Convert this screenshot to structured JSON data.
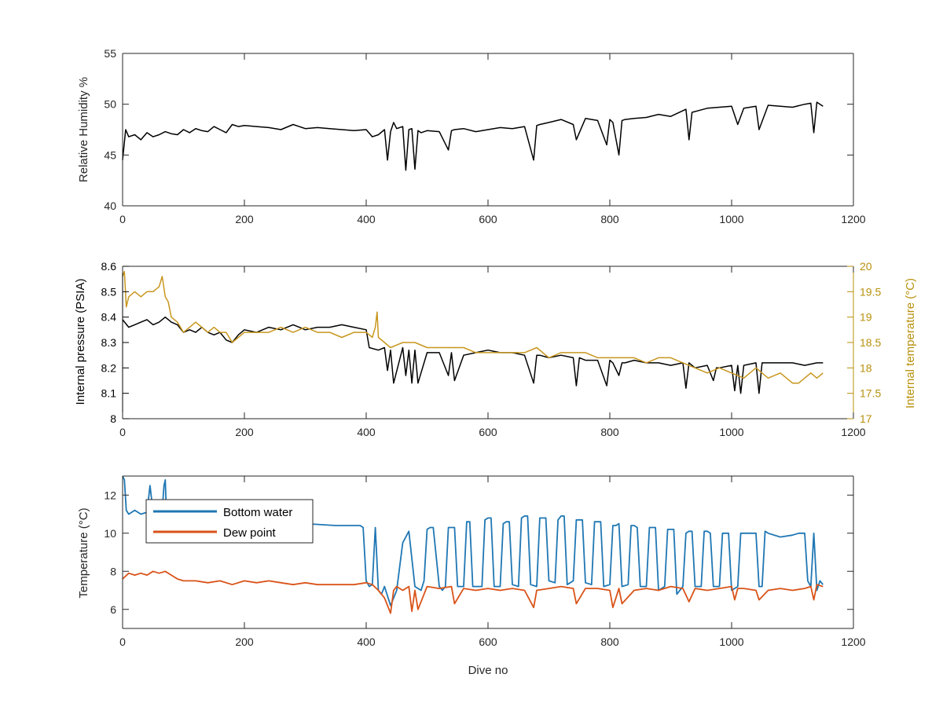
{
  "chart_data": [
    {
      "type": "line",
      "xlabel": "",
      "ylabel": "Relative Humidity %",
      "xlim": [
        0,
        1200
      ],
      "ylim": [
        40,
        55
      ],
      "xticks": [
        0,
        200,
        400,
        600,
        800,
        1000,
        1200
      ],
      "yticks": [
        40,
        45,
        50,
        55
      ],
      "series": [
        {
          "color": "#000000",
          "x": [
            0,
            5,
            10,
            20,
            30,
            40,
            50,
            60,
            70,
            80,
            90,
            100,
            110,
            120,
            130,
            140,
            150,
            160,
            170,
            180,
            190,
            200,
            220,
            240,
            260,
            280,
            300,
            320,
            340,
            360,
            380,
            400,
            410,
            420,
            430,
            435,
            440,
            445,
            450,
            460,
            465,
            470,
            475,
            480,
            485,
            490,
            500,
            520,
            535,
            540,
            545,
            560,
            580,
            600,
            620,
            640,
            660,
            675,
            680,
            685,
            700,
            720,
            740,
            745,
            760,
            780,
            795,
            800,
            805,
            815,
            820,
            825,
            840,
            860,
            880,
            900,
            925,
            930,
            935,
            960,
            980,
            1000,
            1010,
            1020,
            1040,
            1045,
            1060,
            1080,
            1100,
            1120,
            1130,
            1135,
            1140,
            1150
          ],
          "values": [
            44.5,
            47.5,
            46.8,
            47.0,
            46.5,
            47.2,
            46.8,
            47.0,
            47.3,
            47.1,
            47.0,
            47.5,
            47.2,
            47.6,
            47.4,
            47.3,
            47.8,
            47.5,
            47.2,
            48.0,
            47.8,
            47.9,
            47.8,
            47.7,
            47.5,
            48.0,
            47.6,
            47.7,
            47.6,
            47.5,
            47.4,
            47.5,
            46.8,
            47.0,
            47.5,
            44.5,
            47.3,
            48.2,
            47.6,
            47.8,
            43.5,
            47.5,
            47.6,
            43.6,
            47.4,
            47.2,
            47.4,
            47.3,
            45.5,
            47.4,
            47.5,
            47.6,
            47.3,
            47.5,
            47.7,
            47.6,
            47.8,
            44.5,
            47.9,
            48.0,
            48.2,
            48.5,
            48.0,
            46.5,
            48.6,
            48.4,
            46.0,
            48.5,
            48.2,
            45.0,
            48.4,
            48.5,
            48.6,
            48.7,
            49.0,
            48.8,
            49.5,
            46.5,
            49.2,
            49.6,
            49.7,
            49.8,
            48.0,
            49.6,
            49.8,
            47.5,
            49.9,
            49.8,
            49.7,
            50.0,
            50.1,
            47.2,
            50.2,
            49.8
          ]
        }
      ]
    },
    {
      "type": "line",
      "xlabel": "",
      "ylabel": "Internal pressure (PSIA)",
      "y2label": "Internal temperature (°C)",
      "xlim": [
        0,
        1200
      ],
      "ylim": [
        8,
        8.6
      ],
      "y2lim": [
        17,
        20
      ],
      "xticks": [
        0,
        200,
        400,
        600,
        800,
        1000,
        1200
      ],
      "yticks": [
        8,
        8.1,
        8.2,
        8.3,
        8.4,
        8.5,
        8.6
      ],
      "y2ticks": [
        17,
        17.5,
        18,
        18.5,
        19,
        19.5,
        20
      ],
      "series": [
        {
          "color": "#000000",
          "axis": "left",
          "x": [
            0,
            10,
            20,
            30,
            40,
            50,
            60,
            70,
            80,
            90,
            100,
            110,
            120,
            130,
            140,
            150,
            160,
            170,
            180,
            190,
            200,
            220,
            240,
            260,
            280,
            300,
            320,
            340,
            360,
            380,
            400,
            405,
            420,
            430,
            435,
            440,
            445,
            460,
            465,
            470,
            475,
            480,
            485,
            500,
            520,
            535,
            540,
            545,
            560,
            580,
            600,
            620,
            640,
            660,
            675,
            680,
            685,
            700,
            720,
            740,
            745,
            750,
            760,
            780,
            795,
            800,
            805,
            815,
            820,
            825,
            840,
            860,
            880,
            900,
            920,
            925,
            930,
            940,
            960,
            970,
            975,
            980,
            1000,
            1005,
            1010,
            1015,
            1020,
            1040,
            1045,
            1050,
            1080,
            1100,
            1120,
            1140,
            1150
          ],
          "values": [
            8.39,
            8.36,
            8.37,
            8.38,
            8.39,
            8.37,
            8.38,
            8.4,
            8.38,
            8.37,
            8.34,
            8.35,
            8.34,
            8.36,
            8.34,
            8.33,
            8.34,
            8.31,
            8.3,
            8.33,
            8.35,
            8.34,
            8.36,
            8.35,
            8.37,
            8.35,
            8.36,
            8.36,
            8.37,
            8.36,
            8.35,
            8.28,
            8.27,
            8.28,
            8.19,
            8.27,
            8.14,
            8.28,
            8.17,
            8.27,
            8.14,
            8.27,
            8.14,
            8.26,
            8.26,
            8.17,
            8.26,
            8.15,
            8.25,
            8.26,
            8.27,
            8.26,
            8.26,
            8.25,
            8.14,
            8.25,
            8.25,
            8.24,
            8.25,
            8.24,
            8.13,
            8.24,
            8.23,
            8.23,
            8.13,
            8.23,
            8.22,
            8.17,
            8.22,
            8.22,
            8.23,
            8.22,
            8.22,
            8.21,
            8.22,
            8.12,
            8.22,
            8.2,
            8.21,
            8.15,
            8.2,
            8.2,
            8.21,
            8.11,
            8.21,
            8.1,
            8.21,
            8.22,
            8.1,
            8.22,
            8.22,
            8.22,
            8.21,
            8.22,
            8.22
          ]
        },
        {
          "color": "#c8961e",
          "axis": "right",
          "x": [
            0,
            3,
            6,
            10,
            20,
            30,
            40,
            50,
            60,
            65,
            70,
            75,
            80,
            90,
            100,
            110,
            120,
            130,
            140,
            150,
            160,
            170,
            180,
            190,
            200,
            220,
            240,
            260,
            280,
            300,
            320,
            340,
            360,
            380,
            400,
            410,
            415,
            418,
            420,
            430,
            440,
            460,
            480,
            500,
            520,
            540,
            560,
            580,
            600,
            620,
            640,
            660,
            680,
            700,
            720,
            740,
            760,
            780,
            800,
            820,
            840,
            860,
            880,
            900,
            920,
            940,
            960,
            980,
            1000,
            1020,
            1040,
            1060,
            1080,
            1090,
            1100,
            1110,
            1120,
            1130,
            1140,
            1150
          ],
          "values": [
            19.8,
            19.9,
            19.2,
            19.4,
            19.5,
            19.4,
            19.5,
            19.5,
            19.6,
            19.8,
            19.4,
            19.3,
            19.0,
            18.9,
            18.7,
            18.8,
            18.9,
            18.8,
            18.7,
            18.8,
            18.7,
            18.7,
            18.5,
            18.6,
            18.7,
            18.7,
            18.7,
            18.8,
            18.7,
            18.8,
            18.7,
            18.7,
            18.6,
            18.7,
            18.7,
            18.6,
            18.8,
            19.1,
            18.6,
            18.5,
            18.4,
            18.5,
            18.5,
            18.4,
            18.4,
            18.4,
            18.4,
            18.3,
            18.3,
            18.3,
            18.3,
            18.3,
            18.4,
            18.2,
            18.3,
            18.3,
            18.3,
            18.2,
            18.2,
            18.2,
            18.2,
            18.1,
            18.2,
            18.2,
            18.1,
            18.0,
            17.9,
            18.0,
            17.9,
            17.8,
            18.0,
            17.8,
            17.9,
            17.8,
            17.7,
            17.7,
            17.8,
            17.9,
            17.8,
            17.9
          ]
        }
      ]
    },
    {
      "type": "line",
      "xlabel": "Dive no",
      "ylabel": "Temperature (°C)",
      "xlim": [
        0,
        1200
      ],
      "ylim": [
        5,
        13
      ],
      "xticks": [
        0,
        200,
        400,
        600,
        800,
        1000,
        1200
      ],
      "yticks": [
        6,
        8,
        10,
        12
      ],
      "legend": "top-left",
      "series": [
        {
          "name": "Bottom water",
          "color": "#1f77b4",
          "x": [
            0,
            3,
            6,
            10,
            20,
            30,
            40,
            45,
            50,
            55,
            60,
            65,
            68,
            70,
            72,
            80,
            100,
            120,
            150,
            200,
            250,
            300,
            350,
            380,
            390,
            395,
            400,
            405,
            410,
            415,
            420,
            425,
            430,
            440,
            450,
            460,
            470,
            480,
            490,
            495,
            500,
            505,
            510,
            520,
            525,
            530,
            535,
            540,
            545,
            550,
            560,
            565,
            570,
            575,
            580,
            590,
            595,
            600,
            605,
            610,
            620,
            625,
            630,
            635,
            640,
            650,
            655,
            660,
            665,
            670,
            680,
            685,
            690,
            695,
            700,
            710,
            715,
            720,
            725,
            730,
            740,
            745,
            750,
            755,
            760,
            770,
            775,
            780,
            785,
            790,
            800,
            805,
            810,
            815,
            820,
            830,
            835,
            840,
            845,
            850,
            860,
            865,
            870,
            875,
            880,
            890,
            895,
            900,
            905,
            910,
            920,
            925,
            930,
            935,
            940,
            950,
            955,
            960,
            965,
            970,
            980,
            985,
            990,
            995,
            1000,
            1010,
            1015,
            1020,
            1040,
            1045,
            1050,
            1055,
            1060,
            1080,
            1100,
            1110,
            1120,
            1125,
            1130,
            1135,
            1140,
            1145,
            1150
          ],
          "values": [
            13.0,
            12.8,
            11.2,
            11.0,
            11.2,
            11.0,
            11.1,
            12.5,
            11.1,
            11.0,
            11.0,
            11.2,
            12.5,
            12.8,
            11.0,
            10.8,
            10.7,
            10.7,
            10.6,
            10.5,
            10.5,
            10.5,
            10.4,
            10.4,
            10.4,
            10.3,
            7.5,
            7.2,
            7.3,
            10.3,
            7.0,
            6.8,
            7.2,
            6.2,
            7.0,
            9.5,
            10.1,
            7.2,
            7.0,
            7.5,
            10.2,
            10.3,
            10.3,
            7.2,
            7.0,
            7.2,
            10.3,
            10.3,
            10.3,
            7.2,
            7.2,
            10.6,
            10.6,
            7.2,
            7.2,
            7.2,
            10.7,
            10.8,
            10.8,
            7.2,
            7.2,
            10.5,
            10.6,
            10.6,
            7.3,
            7.2,
            10.8,
            10.9,
            10.9,
            7.3,
            7.2,
            10.8,
            10.8,
            10.8,
            7.5,
            7.4,
            10.7,
            10.9,
            10.9,
            7.3,
            7.5,
            10.7,
            10.7,
            10.7,
            7.4,
            7.3,
            10.6,
            10.6,
            10.6,
            7.2,
            7.3,
            10.4,
            10.4,
            10.5,
            7.2,
            7.3,
            10.4,
            10.4,
            10.3,
            7.2,
            7.2,
            10.3,
            10.3,
            10.3,
            7.0,
            7.2,
            10.2,
            10.2,
            10.2,
            6.8,
            7.2,
            10.0,
            10.1,
            10.1,
            7.2,
            7.2,
            10.1,
            10.1,
            10.0,
            7.2,
            7.2,
            10.0,
            10.0,
            10.0,
            7.0,
            7.2,
            10.0,
            10.0,
            10.0,
            7.2,
            7.2,
            10.1,
            10.0,
            9.8,
            9.9,
            10.0,
            10.0,
            7.5,
            7.2,
            10.0,
            7.0,
            7.5,
            7.3
          ]
        },
        {
          "name": "Dew point",
          "color": "#d95319",
          "x": [
            0,
            10,
            20,
            30,
            40,
            50,
            60,
            70,
            80,
            90,
            100,
            120,
            140,
            160,
            180,
            200,
            220,
            240,
            260,
            280,
            300,
            320,
            340,
            360,
            380,
            400,
            410,
            420,
            430,
            440,
            445,
            450,
            460,
            470,
            475,
            480,
            485,
            500,
            520,
            540,
            545,
            560,
            580,
            600,
            620,
            640,
            660,
            675,
            680,
            700,
            720,
            740,
            745,
            760,
            780,
            800,
            805,
            815,
            820,
            840,
            860,
            880,
            900,
            920,
            930,
            940,
            960,
            980,
            1000,
            1005,
            1010,
            1020,
            1040,
            1045,
            1060,
            1080,
            1100,
            1120,
            1130,
            1135,
            1140,
            1150
          ],
          "values": [
            7.6,
            7.9,
            7.8,
            7.9,
            7.8,
            8.0,
            7.9,
            8.0,
            7.8,
            7.6,
            7.5,
            7.5,
            7.4,
            7.5,
            7.3,
            7.5,
            7.4,
            7.5,
            7.4,
            7.3,
            7.4,
            7.3,
            7.3,
            7.3,
            7.3,
            7.4,
            7.3,
            7.0,
            6.6,
            5.8,
            7.0,
            7.2,
            7.0,
            7.2,
            5.9,
            7.0,
            6.0,
            7.2,
            7.1,
            7.2,
            6.3,
            7.1,
            7.0,
            7.1,
            7.0,
            7.1,
            7.0,
            6.1,
            7.0,
            7.1,
            7.2,
            7.1,
            6.3,
            7.1,
            7.1,
            7.0,
            6.1,
            7.1,
            6.3,
            7.0,
            7.1,
            7.0,
            7.2,
            7.1,
            6.4,
            7.1,
            7.0,
            7.1,
            7.2,
            6.5,
            7.1,
            7.1,
            7.0,
            6.5,
            7.0,
            7.1,
            7.0,
            7.1,
            7.2,
            6.5,
            7.3,
            7.2
          ]
        }
      ]
    }
  ]
}
